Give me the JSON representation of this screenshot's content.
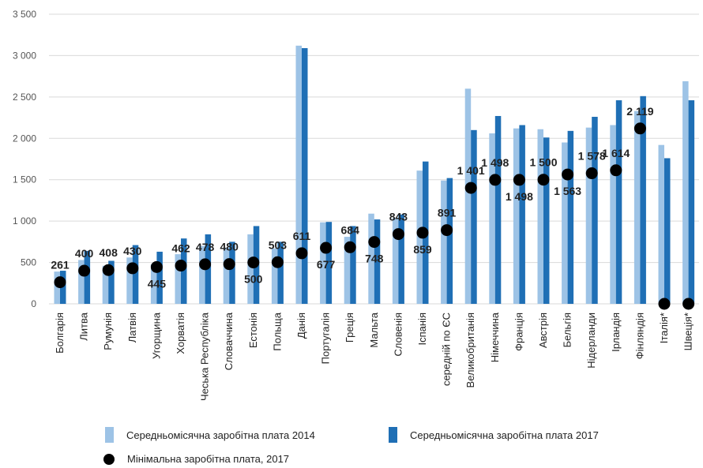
{
  "chart_data": {
    "type": "bar",
    "categories": [
      "Болгарія",
      "Литва",
      "Румунія",
      "Латвія",
      "Угорщина",
      "Хорватія",
      "Чеська Республіка",
      "Словаччина",
      "Естонія",
      "Польща",
      "Данія",
      "Португалія",
      "Греція",
      "Мальта",
      "Словенія",
      "Іспанія",
      "середній по ЄС",
      "Великобританія",
      "Німеччина",
      "Франція",
      "Австрія",
      "Бельгія",
      "Нідерланди",
      "Ірландія",
      "Фінляндія",
      "Італія*",
      "Швеція*"
    ],
    "series": [
      {
        "name": "Середньомісячна заробітна плата 2014",
        "type": "bar",
        "color": "#9dc3e6",
        "values": [
          390,
          530,
          460,
          560,
          480,
          600,
          700,
          680,
          840,
          670,
          3120,
          985,
          810,
          1090,
          1040,
          1610,
          1490,
          2600,
          2060,
          2120,
          2110,
          1950,
          2130,
          2160,
          2330,
          1920,
          2690
        ]
      },
      {
        "name": "Середньомісячна заробітна плата 2017",
        "type": "bar",
        "color": "#1f6fb5",
        "values": [
          400,
          640,
          520,
          710,
          630,
          790,
          840,
          750,
          940,
          750,
          3090,
          990,
          940,
          1020,
          1080,
          1720,
          1520,
          2100,
          2270,
          2160,
          2010,
          2090,
          2260,
          2460,
          2510,
          1760,
          2460
        ]
      },
      {
        "name": "Мінімальна заробітна плата, 2017",
        "type": "scatter",
        "color": "#000000",
        "values": [
          261,
          400,
          408,
          430,
          445,
          462,
          478,
          480,
          500,
          503,
          611,
          677,
          684,
          748,
          843,
          859,
          891,
          1401,
          1498,
          1498,
          1500,
          1563,
          1578,
          1614,
          2119,
          0,
          0
        ]
      }
    ],
    "data_labels": [
      "261",
      "400",
      "408",
      "430",
      "445",
      "462",
      "478",
      "480",
      "500",
      "503",
      "611",
      "677",
      "684",
      "748",
      "843",
      "859",
      "891",
      "1 401",
      "1 498",
      "1 498",
      "1 500",
      "1 563",
      "1 578",
      "1 614",
      "2 119",
      "",
      ""
    ],
    "y_ticks": [
      "0",
      "500",
      "1 000",
      "1 500",
      "2 000",
      "2 500",
      "3 000",
      "3 500"
    ],
    "ylim": [
      0,
      3500
    ],
    "title": "",
    "xlabel": "",
    "ylabel": "",
    "grid": true,
    "legend_position": "bottom"
  },
  "legend": {
    "item_2014": "Середньомісячна заробітна плата 2014",
    "item_2017": "Середньомісячна заробітна плата 2017",
    "item_min": "Мінімальна заробітна плата, 2017"
  }
}
